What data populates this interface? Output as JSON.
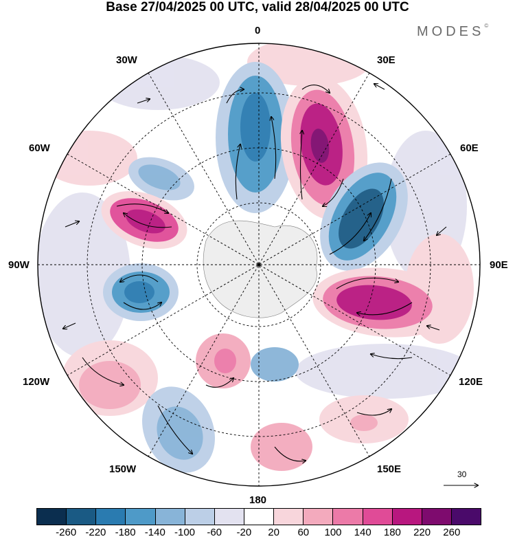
{
  "title": "Base 27/04/2025 00 UTC, valid 28/04/2025 00 UTC",
  "brand": "MODES",
  "brand_mark": "©",
  "map": {
    "projection": "south-polar-stereographic",
    "longitude_labels": {
      "lon_0": "0",
      "lon_30e": "30E",
      "lon_60e": "60E",
      "lon_90e": "90E",
      "lon_120e": "120E",
      "lon_150e": "150E",
      "lon_180": "180",
      "lon_150w": "150W",
      "lon_120w": "120W",
      "lon_90w": "90W",
      "lon_60w": "60W",
      "lon_30w": "30W"
    },
    "gridlines": "dashed",
    "vector_reference": {
      "label": "30"
    }
  },
  "colorbar": {
    "colors": [
      "#0b2e4f",
      "#1a5a84",
      "#2a7bb0",
      "#4e9ac8",
      "#88b4d8",
      "#bccfe7",
      "#e3e2f0",
      "#ffffff",
      "#f8d6dc",
      "#f3aabd",
      "#ec7aa8",
      "#e04b97",
      "#b8177f",
      "#7e0b6e",
      "#4a0a6a"
    ],
    "tick_labels": [
      "-260",
      "-220",
      "-180",
      "-140",
      "-100",
      "-60",
      "-20",
      "20",
      "60",
      "100",
      "140",
      "180",
      "220",
      "260"
    ]
  }
}
